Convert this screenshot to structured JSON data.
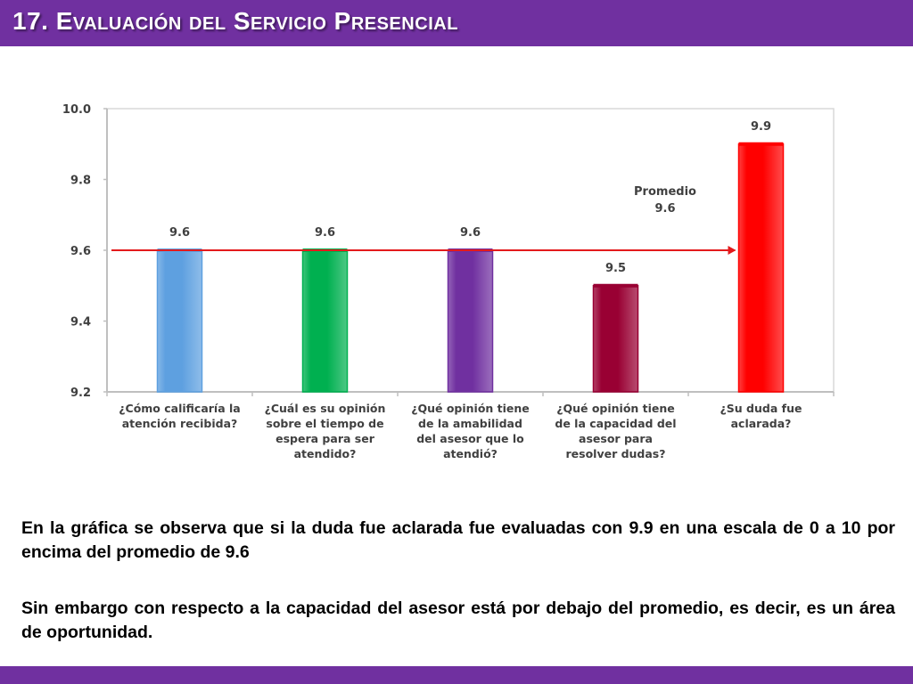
{
  "header": {
    "title": "17. Evaluación del Servicio Presencial"
  },
  "colors": {
    "accent": "#7030a0",
    "average_line": "#e31a1c"
  },
  "chart_data": {
    "type": "bar",
    "categories": [
      [
        "¿Cómo calificaría la",
        "atención recibida?"
      ],
      [
        "¿Cuál es su opinión",
        "sobre el tiempo de",
        "espera para ser",
        "atendido?"
      ],
      [
        "¿Qué opinión tiene",
        "de la amabilidad",
        "del asesor que lo",
        "atendió?"
      ],
      [
        "¿Qué opinión tiene",
        "de la capacidad del",
        "asesor para",
        "resolver dudas?"
      ],
      [
        "¿Su duda fue",
        "aclarada?"
      ]
    ],
    "values": [
      9.6,
      9.6,
      9.6,
      9.5,
      9.9
    ],
    "value_labels": [
      "9.6",
      "9.6",
      "9.6",
      "9.5",
      "9.9"
    ],
    "bar_colors": [
      "#5ea0e0",
      "#00b050",
      "#7030a0",
      "#990033",
      "#ff0000"
    ],
    "ylim": [
      9.2,
      10.0
    ],
    "yticks": [
      "10.0",
      "9.8",
      "9.6",
      "9.4",
      "9.2"
    ],
    "ytick_values": [
      10.0,
      9.8,
      9.6,
      9.4,
      9.2
    ],
    "average": {
      "value": 9.6,
      "label_lines": [
        "Promedio",
        "9.6"
      ]
    },
    "grid": false,
    "xlabel": "",
    "ylabel": ""
  },
  "text": {
    "paragraph1": "En la gráfica se observa que si la duda fue aclarada fue evaluadas con 9.9 en una escala de 0 a 10 por encima del promedio de 9.6",
    "paragraph2": "Sin embargo con respecto a la capacidad del asesor está por debajo del promedio, es decir, es un área de oportunidad."
  }
}
